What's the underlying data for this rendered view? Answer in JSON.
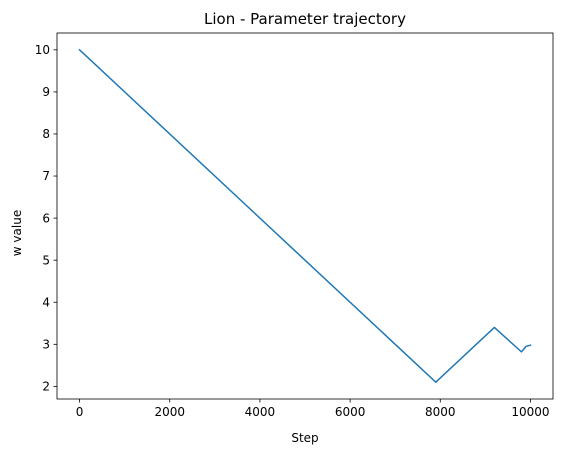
{
  "chart_data": {
    "type": "line",
    "title": "Lion - Parameter trajectory",
    "xlabel": "Step",
    "ylabel": "w value",
    "xlim": [
      -500,
      10500
    ],
    "ylim": [
      1.7,
      10.4
    ],
    "xticks": [
      0,
      2000,
      4000,
      6000,
      8000,
      10000
    ],
    "yticks": [
      2,
      3,
      4,
      5,
      6,
      7,
      8,
      9,
      10
    ],
    "grid": false,
    "series": [
      {
        "color": "#1f77b4",
        "x": [
          0,
          7900,
          9200,
          9800,
          9900,
          10000
        ],
        "y": [
          10.0,
          2.1,
          3.4,
          2.82,
          2.95,
          2.98
        ]
      }
    ]
  }
}
